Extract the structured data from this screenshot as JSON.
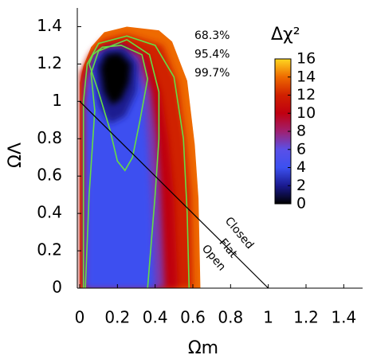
{
  "chart_data": {
    "type": "contour",
    "xlabel": "Ωm",
    "ylabel": "ΩΛ",
    "xlim": [
      0,
      1.5
    ],
    "ylim": [
      0,
      1.5
    ],
    "xticks": [
      0,
      0.2,
      0.4,
      0.6,
      0.8,
      1,
      1.2,
      1.4
    ],
    "yticks": [
      0,
      0.2,
      0.4,
      0.6,
      0.8,
      1,
      1.2,
      1.4
    ],
    "colorbar": {
      "title": "Δχ²",
      "ticks": [
        0,
        2,
        4,
        6,
        8,
        10,
        12,
        14,
        16
      ],
      "colors": [
        "#000000",
        "#1a1a90",
        "#3c50f0",
        "#5a50e8",
        "#a02070",
        "#c00010",
        "#d02000",
        "#ee6a00",
        "#ffd820"
      ]
    },
    "regions": [
      {
        "level": 14,
        "x": [
          0,
          0.64,
          0.63,
          0.61,
          0.57,
          0.49,
          0.42,
          0.25,
          0.13,
          0.06,
          0.02,
          0
        ],
        "y": [
          0,
          0,
          0.48,
          0.77,
          1.11,
          1.32,
          1.38,
          1.4,
          1.37,
          1.29,
          1.19,
          1.1
        ]
      },
      {
        "level": 12,
        "x": [
          0.005,
          0.6,
          0.59,
          0.56,
          0.52,
          0.44,
          0.25,
          0.12,
          0.05,
          0.005
        ],
        "y": [
          0,
          0,
          0.5,
          0.8,
          1.1,
          1.3,
          1.36,
          1.33,
          1.25,
          1.15
        ]
      },
      {
        "level": 10,
        "x": [
          0.015,
          0.52,
          0.5,
          0.47,
          0.43,
          0.36,
          0.22,
          0.1,
          0.015
        ],
        "y": [
          0,
          0,
          0.5,
          0.8,
          1.05,
          1.25,
          1.32,
          1.28,
          1.15
        ]
      },
      {
        "level": 7,
        "x": [
          0.025,
          0.45,
          0.43,
          0.41,
          0.38,
          0.32,
          0.2,
          0.08,
          0.025
        ],
        "y": [
          0,
          0,
          0.5,
          0.8,
          1.05,
          1.25,
          1.3,
          1.26,
          1.1
        ]
      },
      {
        "level": 4,
        "x": [
          0.035,
          0.4,
          0.38,
          0.36,
          0.34,
          0.28,
          0.18,
          0.08,
          0.035
        ],
        "y": [
          0,
          0,
          0.5,
          0.8,
          1.05,
          1.22,
          1.28,
          1.24,
          1
        ]
      },
      {
        "level": 2,
        "x": [
          0.07,
          0.1,
          0.16,
          0.24,
          0.3,
          0.31,
          0.24,
          0.13
        ],
        "y": [
          1.2,
          0.98,
          0.88,
          0.92,
          1.05,
          1.2,
          1.29,
          1.28
        ]
      },
      {
        "level": 0,
        "x": [
          0.11,
          0.13,
          0.17,
          0.22,
          0.26,
          0.27,
          0.21,
          0.14
        ],
        "y": [
          1.18,
          1.05,
          0.98,
          1.01,
          1.1,
          1.2,
          1.26,
          1.25
        ]
      }
    ],
    "contours": [
      {
        "name": "68.3%",
        "x": [
          0.05,
          0.1,
          0.16,
          0.2,
          0.24,
          0.28,
          0.32,
          0.36,
          0.33,
          0.22,
          0.12,
          0.07,
          0.05
        ],
        "y": [
          1.2,
          1.05,
          0.85,
          0.68,
          0.63,
          0.7,
          0.9,
          1.12,
          1.25,
          1.3,
          1.29,
          1.25,
          1.2
        ]
      },
      {
        "name": "95.4%",
        "x": [
          0.03,
          0.05,
          0.08,
          0.06,
          0.1,
          0.25,
          0.37,
          0.42,
          0.42,
          0.4,
          0.36
        ],
        "y": [
          0,
          0.5,
          0.95,
          1.15,
          1.27,
          1.33,
          1.25,
          1.05,
          0.8,
          0.5,
          0
        ]
      },
      {
        "name": "99.7%",
        "x": [
          0.02,
          0.02,
          0.02,
          0.04,
          0.1,
          0.25,
          0.4,
          0.5,
          0.55,
          0.57,
          0.58
        ],
        "y": [
          0,
          0.45,
          1,
          1.2,
          1.31,
          1.35,
          1.3,
          1.13,
          0.8,
          0.4,
          0
        ]
      }
    ],
    "contour_color": "#66dd44",
    "flat_line": {
      "x": [
        0,
        1
      ],
      "y": [
        1,
        0
      ]
    },
    "annotations": [
      "Closed",
      "Flat",
      "Open"
    ]
  }
}
